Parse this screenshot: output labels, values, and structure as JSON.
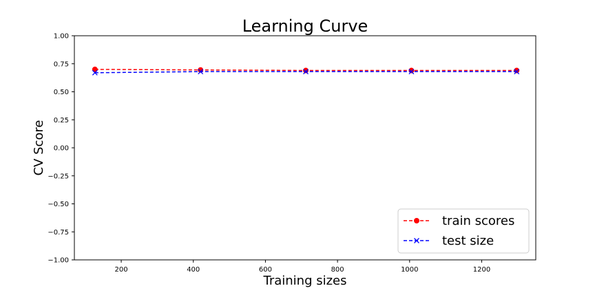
{
  "chart_data": {
    "type": "line",
    "title": "Learning Curve",
    "xlabel": "Training sizes",
    "ylabel": "CV Score",
    "xlim": [
      70,
      1350
    ],
    "ylim": [
      -1.0,
      1.0
    ],
    "x_ticks": [
      200,
      400,
      600,
      800,
      1000,
      1200
    ],
    "y_ticks": [
      -1.0,
      -0.75,
      -0.5,
      -0.25,
      0.0,
      0.25,
      0.5,
      0.75,
      1.0
    ],
    "x_tick_labels": [
      "200",
      "400",
      "600",
      "800",
      "1000",
      "1200"
    ],
    "y_tick_labels": [
      "−1.00",
      "−0.75",
      "−0.50",
      "−0.25",
      "0.00",
      "0.25",
      "0.50",
      "0.75",
      "1.00"
    ],
    "grid": false,
    "legend_position": "lower-right",
    "x": [
      127,
      420,
      712,
      1005,
      1297
    ],
    "series": [
      {
        "name": "train scores",
        "values": [
          0.7,
          0.695,
          0.69,
          0.69,
          0.69
        ],
        "color": "#ff0000",
        "marker": "circle",
        "linestyle": "dashed"
      },
      {
        "name": "test size",
        "values": [
          0.67,
          0.68,
          0.68,
          0.68,
          0.68
        ],
        "color": "#0000ff",
        "marker": "x",
        "linestyle": "dashed"
      }
    ]
  }
}
